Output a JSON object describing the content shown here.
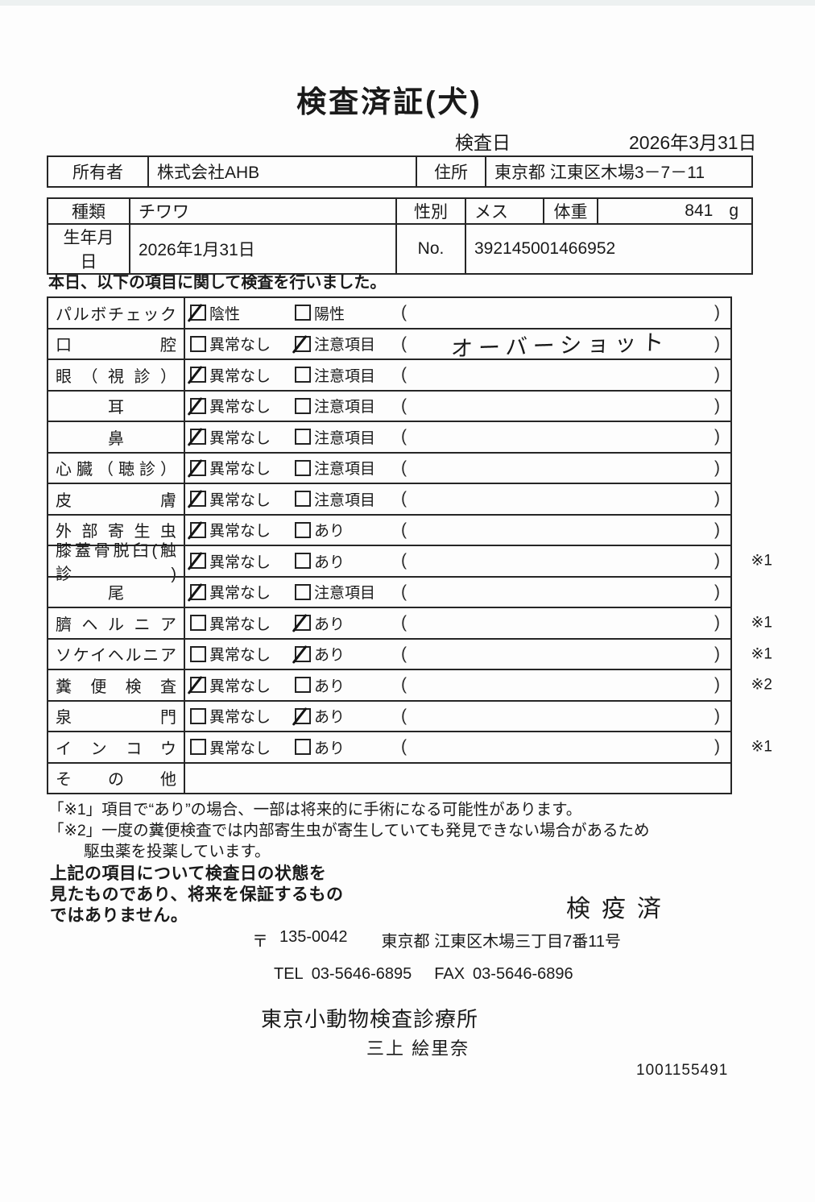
{
  "page": {
    "title": "検査済証(犬)",
    "serial": "1001155491"
  },
  "header": {
    "inspection_date_label": "検査日",
    "inspection_date_value": "2026年3月31日"
  },
  "owner_table": {
    "owner_label": "所有者",
    "owner_value": "株式会社AHB",
    "address_label": "住所",
    "address_value": "東京都 江東区木場3－7－11"
  },
  "animal_table": {
    "breed_label": "種類",
    "breed_value": "チワワ",
    "sex_label": "性別",
    "sex_value": "メス",
    "weight_label": "体重",
    "weight_value": "841",
    "weight_unit": "g",
    "birthdate_label": "生年月日",
    "birthdate_value": "2026年1月31日",
    "no_label": "No.",
    "no_value": "392145001466952"
  },
  "intro_text": "本日、以下の項目に関して検査を行いました。",
  "checklist": {
    "paren_open": "(",
    "paren_close": ")",
    "rows": [
      {
        "label": "パルボチェック",
        "opt1": "陰性",
        "opt1_checked": true,
        "opt2": "陽性",
        "opt2_checked": false,
        "note": "",
        "remark": ""
      },
      {
        "label": "口腔",
        "opt1": "異常なし",
        "opt1_checked": false,
        "opt2": "注意項目",
        "opt2_checked": true,
        "note": "オーバーショット",
        "note_handwritten": true,
        "remark": ""
      },
      {
        "label": "眼（視診）",
        "opt1": "異常なし",
        "opt1_checked": true,
        "opt2": "注意項目",
        "opt2_checked": false,
        "note": "",
        "remark": ""
      },
      {
        "label": "耳",
        "opt1": "異常なし",
        "opt1_checked": true,
        "opt2": "注意項目",
        "opt2_checked": false,
        "note": "",
        "remark": ""
      },
      {
        "label": "鼻",
        "opt1": "異常なし",
        "opt1_checked": true,
        "opt2": "注意項目",
        "opt2_checked": false,
        "note": "",
        "remark": ""
      },
      {
        "label": "心臓（聴診）",
        "opt1": "異常なし",
        "opt1_checked": true,
        "opt2": "注意項目",
        "opt2_checked": false,
        "note": "",
        "remark": ""
      },
      {
        "label": "皮膚",
        "opt1": "異常なし",
        "opt1_checked": true,
        "opt2": "注意項目",
        "opt2_checked": false,
        "note": "",
        "remark": ""
      },
      {
        "label": "外部寄生虫",
        "opt1": "異常なし",
        "opt1_checked": true,
        "opt2": "あり",
        "opt2_checked": false,
        "note": "",
        "remark": ""
      },
      {
        "label": "膝蓋骨脱臼(触診)",
        "opt1": "異常なし",
        "opt1_checked": true,
        "opt2": "あり",
        "opt2_checked": false,
        "note": "",
        "remark": "※1"
      },
      {
        "label": "尾",
        "opt1": "異常なし",
        "opt1_checked": true,
        "opt2": "注意項目",
        "opt2_checked": false,
        "note": "",
        "remark": ""
      },
      {
        "label": "臍ヘルニア",
        "opt1": "異常なし",
        "opt1_checked": false,
        "opt2": "あり",
        "opt2_checked": true,
        "note": "",
        "remark": "※1"
      },
      {
        "label": "ソケイヘルニア",
        "opt1": "異常なし",
        "opt1_checked": false,
        "opt2": "あり",
        "opt2_checked": true,
        "note": "",
        "remark": "※1"
      },
      {
        "label": "糞便検査",
        "opt1": "異常なし",
        "opt1_checked": true,
        "opt2": "あり",
        "opt2_checked": false,
        "note": "",
        "remark": "※2"
      },
      {
        "label": "泉門",
        "opt1": "異常なし",
        "opt1_checked": false,
        "opt2": "あり",
        "opt2_checked": true,
        "note": "",
        "remark": ""
      },
      {
        "label": "インコウ",
        "opt1": "異常なし",
        "opt1_checked": false,
        "opt2": "あり",
        "opt2_checked": false,
        "note": "",
        "remark": "※1"
      },
      {
        "label": "その他",
        "opt1": "",
        "opt1_checked": false,
        "opt2": "",
        "opt2_checked": false,
        "note": "",
        "remark": "",
        "no_options": true
      }
    ]
  },
  "footnotes": {
    "note1": "「※1」項目で“あり”の場合、一部は将来的に手術になる可能性があります。",
    "note2_line1": "「※2」一度の糞便検査では内部寄生虫が寄生していても発見できない場合があるため",
    "note2_line2": "駆虫薬を投薬しています。"
  },
  "disclaimer": {
    "line1": "上記の項目について検査日の状態を",
    "line2": "見たものであり、将来を保証するもの",
    "line3": "ではありません。"
  },
  "footer": {
    "stamp": "検疫済",
    "postal_mark": "〒",
    "postal_code": "135-0042",
    "address": "東京都 江東区木場三丁目7番11号",
    "tel_label": "TEL",
    "tel": "03-5646-6895",
    "fax_label": "FAX",
    "fax": "03-5646-6896",
    "clinic_name": "東京小動物検査診療所",
    "veterinarian_name": "三上 絵里奈"
  }
}
